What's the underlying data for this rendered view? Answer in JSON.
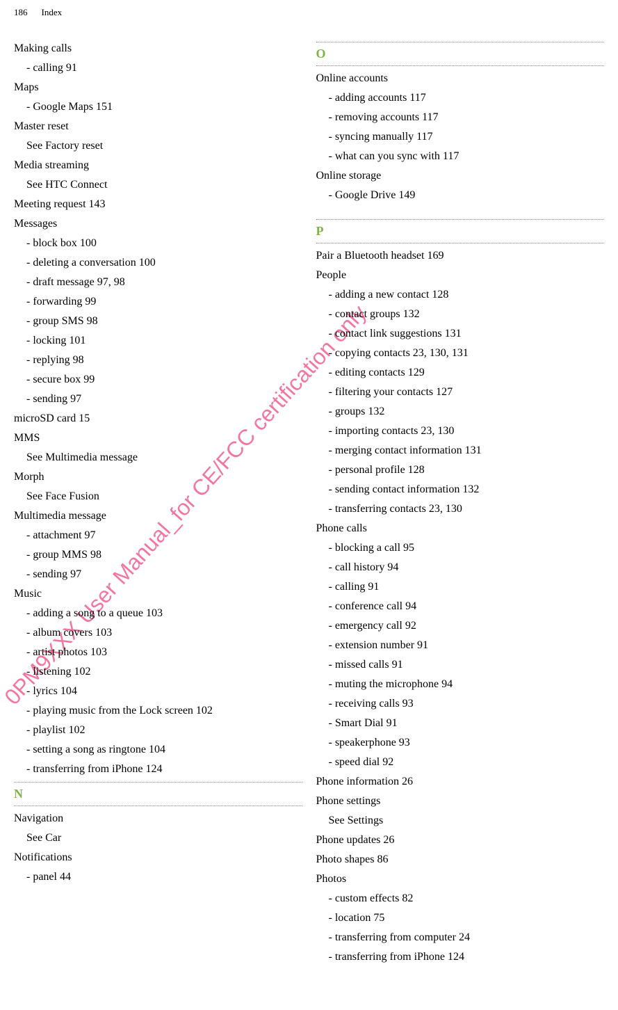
{
  "header": {
    "page_number": "186",
    "section": "Index"
  },
  "watermark": "0PM9XXX User Manual_for CE/FCC certification only",
  "left_column": {
    "entries": [
      {
        "type": "main",
        "text": "Making calls"
      },
      {
        "type": "sub",
        "text": "calling  91"
      },
      {
        "type": "main",
        "text": "Maps"
      },
      {
        "type": "sub",
        "text": "Google Maps  151"
      },
      {
        "type": "main",
        "text": "Master reset"
      },
      {
        "type": "main-indent",
        "text": "See Factory reset"
      },
      {
        "type": "main",
        "text": "Media streaming"
      },
      {
        "type": "main-indent",
        "text": "See HTC Connect"
      },
      {
        "type": "main",
        "text": "Meeting request  143"
      },
      {
        "type": "main",
        "text": "Messages"
      },
      {
        "type": "sub",
        "text": "block box  100"
      },
      {
        "type": "sub",
        "text": "deleting a conversation  100"
      },
      {
        "type": "sub",
        "text": "draft message  97, 98"
      },
      {
        "type": "sub",
        "text": "forwarding  99"
      },
      {
        "type": "sub",
        "text": "group SMS  98"
      },
      {
        "type": "sub",
        "text": "locking  101"
      },
      {
        "type": "sub",
        "text": "replying  98"
      },
      {
        "type": "sub",
        "text": "secure box  99"
      },
      {
        "type": "sub",
        "text": "sending  97"
      },
      {
        "type": "main",
        "text": "microSD card  15"
      },
      {
        "type": "main",
        "text": "MMS"
      },
      {
        "type": "main-indent",
        "text": "See Multimedia message"
      },
      {
        "type": "main",
        "text": "Morph"
      },
      {
        "type": "main-indent",
        "text": "See Face Fusion"
      },
      {
        "type": "main",
        "text": "Multimedia message"
      },
      {
        "type": "sub",
        "text": "attachment  97"
      },
      {
        "type": "sub",
        "text": "group MMS  98"
      },
      {
        "type": "sub",
        "text": "sending  97"
      },
      {
        "type": "main",
        "text": "Music"
      },
      {
        "type": "sub",
        "text": "adding a song to a queue  103"
      },
      {
        "type": "sub",
        "text": "album covers  103"
      },
      {
        "type": "sub",
        "text": "artist photos  103"
      },
      {
        "type": "sub",
        "text": "listening  102"
      },
      {
        "type": "sub",
        "text": "lyrics  104"
      },
      {
        "type": "sub",
        "text": "playing music from the Lock screen  102"
      },
      {
        "type": "sub",
        "text": "playlist  102"
      },
      {
        "type": "sub",
        "text": "setting a song as ringtone  104"
      },
      {
        "type": "sub",
        "text": "transferring from iPhone  124"
      }
    ],
    "section_n": {
      "letter": "N",
      "entries": [
        {
          "type": "main",
          "text": "Navigation"
        },
        {
          "type": "main-indent",
          "text": "See Car"
        },
        {
          "type": "main",
          "text": "Notifications"
        },
        {
          "type": "sub",
          "text": "panel  44"
        }
      ]
    }
  },
  "right_column": {
    "section_o": {
      "letter": "O",
      "entries": [
        {
          "type": "main",
          "text": "Online accounts"
        },
        {
          "type": "sub",
          "text": "adding accounts  117"
        },
        {
          "type": "sub",
          "text": "removing accounts  117"
        },
        {
          "type": "sub",
          "text": "syncing manually  117"
        },
        {
          "type": "sub",
          "text": "what can you sync with  117"
        },
        {
          "type": "main",
          "text": "Online storage"
        },
        {
          "type": "sub",
          "text": "Google Drive  149"
        }
      ]
    },
    "section_p": {
      "letter": "P",
      "entries": [
        {
          "type": "main",
          "text": "Pair a Bluetooth headset  169"
        },
        {
          "type": "main",
          "text": "People"
        },
        {
          "type": "sub",
          "text": "adding a new contact  128"
        },
        {
          "type": "sub",
          "text": "contact groups  132"
        },
        {
          "type": "sub",
          "text": "contact link suggestions  131"
        },
        {
          "type": "sub",
          "text": "copying contacts  23, 130, 131"
        },
        {
          "type": "sub",
          "text": "editing contacts  129"
        },
        {
          "type": "sub",
          "text": "filtering your contacts  127"
        },
        {
          "type": "sub",
          "text": "groups  132"
        },
        {
          "type": "sub",
          "text": "importing contacts  23, 130"
        },
        {
          "type": "sub",
          "text": "merging contact information  131"
        },
        {
          "type": "sub",
          "text": "personal profile  128"
        },
        {
          "type": "sub",
          "text": "sending contact information  132"
        },
        {
          "type": "sub",
          "text": "transferring contacts  23, 130"
        },
        {
          "type": "main",
          "text": "Phone calls"
        },
        {
          "type": "sub",
          "text": "blocking a call  95"
        },
        {
          "type": "sub",
          "text": "call history  94"
        },
        {
          "type": "sub",
          "text": "calling  91"
        },
        {
          "type": "sub",
          "text": "conference call  94"
        },
        {
          "type": "sub",
          "text": "emergency call  92"
        },
        {
          "type": "sub",
          "text": "extension number  91"
        },
        {
          "type": "sub",
          "text": "missed calls  91"
        },
        {
          "type": "sub",
          "text": "muting the microphone  94"
        },
        {
          "type": "sub",
          "text": "receiving calls  93"
        },
        {
          "type": "sub",
          "text": "Smart Dial  91"
        },
        {
          "type": "sub",
          "text": "speakerphone  93"
        },
        {
          "type": "sub",
          "text": "speed dial  92"
        },
        {
          "type": "main",
          "text": "Phone information  26"
        },
        {
          "type": "main",
          "text": "Phone settings"
        },
        {
          "type": "main-indent",
          "text": "See Settings"
        },
        {
          "type": "main",
          "text": "Phone updates  26"
        },
        {
          "type": "main",
          "text": "Photo shapes  86"
        },
        {
          "type": "main",
          "text": "Photos"
        },
        {
          "type": "sub",
          "text": "custom effects  82"
        },
        {
          "type": "sub",
          "text": "location  75"
        },
        {
          "type": "sub",
          "text": "transferring from computer  24"
        },
        {
          "type": "sub",
          "text": "transferring from iPhone  124"
        }
      ]
    }
  }
}
